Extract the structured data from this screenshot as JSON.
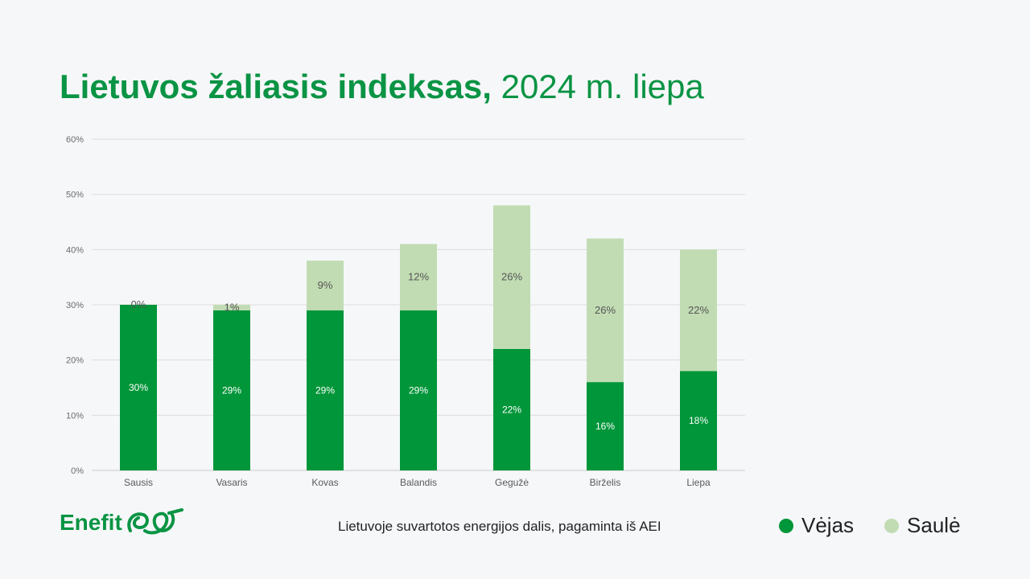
{
  "title": {
    "bold": "Lietuvos žaliasis indeksas,",
    "rest": "2024 m. liepa"
  },
  "footer": {
    "logo_text": "Enefit",
    "caption": "Lietuvoje suvartotos energijos dalis, pagaminta iš AEI"
  },
  "colors": {
    "wind": "#009639",
    "solar": "#c1dcb3",
    "title": "#0a9444"
  },
  "chart_data": {
    "type": "bar",
    "stacked": true,
    "categories": [
      "Sausis",
      "Vasaris",
      "Kovas",
      "Balandis",
      "Gegužė",
      "Birželis",
      "Liepa"
    ],
    "series": [
      {
        "name": "Vėjas",
        "values": [
          30,
          29,
          29,
          29,
          22,
          16,
          18
        ],
        "labels": [
          "30%",
          "29%",
          "29%",
          "29%",
          "22%",
          "16%",
          "18%"
        ]
      },
      {
        "name": "Saulė",
        "values": [
          0,
          1,
          9,
          12,
          26,
          26,
          22
        ],
        "labels": [
          "0%",
          "1%",
          "9%",
          "12%",
          "26%",
          "26%",
          "22%"
        ]
      }
    ],
    "ylim": [
      0,
      60
    ],
    "yticks": [
      "0%",
      "10%",
      "20%",
      "30%",
      "40%",
      "50%",
      "60%"
    ],
    "ytick_values": [
      0,
      10,
      20,
      30,
      40,
      50,
      60
    ],
    "grid": true,
    "legend_position": "bottom-right"
  }
}
